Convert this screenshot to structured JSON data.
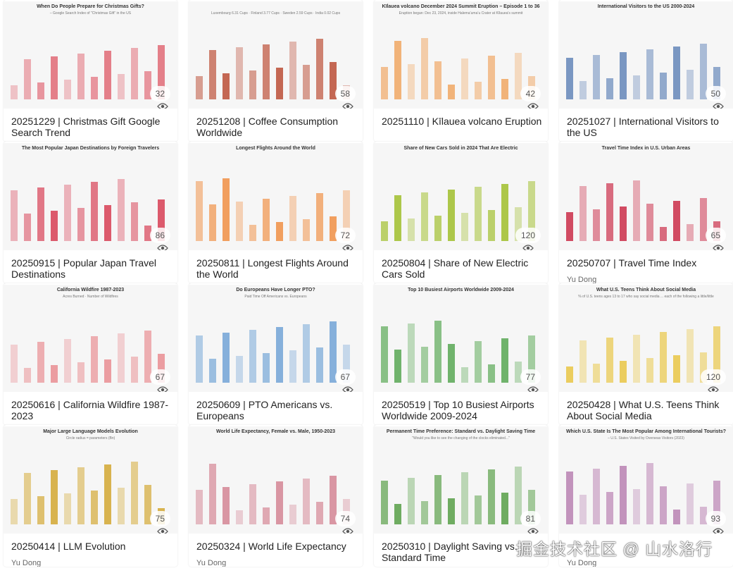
{
  "cards": [
    {
      "thumb_title": "When Do People Prepare for Christmas Gifts?",
      "thumb_sub": "– Google Search Index of \"Christmas Gift\" in the US",
      "title": "20251229 | Christmas Gift Google Search Trend",
      "views": "32",
      "accent": "#e0616e"
    },
    {
      "thumb_title": "",
      "thumb_sub": "Luxembourg 6.31 Cups · Finland 3.77 Cups · Sweden 2.59 Cups · India 0.02 Cups",
      "title": "20251208 | Coffee Consumption Worldwide",
      "views": "58",
      "accent": "#b8432a"
    },
    {
      "thumb_title": "Kīlauea volcano December 2024 Summit Eruption – Episode 1 to 36",
      "thumb_sub": "Eruption began: Dec 23, 2024, inside Halemaʻumaʻu Crater at Kīlauea's summit",
      "title": "20251110 | Kīlauea volcano Eruption",
      "views": "42",
      "accent": "#f0a25a"
    },
    {
      "thumb_title": "International Visitors to the US 2000-2024",
      "thumb_sub": "",
      "title": "20251027 | International Visitors to the US",
      "views": "50",
      "accent": "#5b7fb5"
    },
    {
      "thumb_title": "The Most Popular Japan Destinations by Foreign Travelers",
      "thumb_sub": "",
      "title": "20250915 | Popular Japan Travel Destinations",
      "views": "86",
      "accent": "#d6334a"
    },
    {
      "thumb_title": "Longest Flights Around the World",
      "thumb_sub": "",
      "title": "20250811 | Longest Flights Around the World",
      "views": "72",
      "accent": "#f08a3a"
    },
    {
      "thumb_title": "Share of New Cars Sold in 2024 That Are Electric",
      "thumb_sub": "",
      "title": "20250804 | Share of New Electric Cars Sold",
      "views": "120",
      "accent": "#9bbb1f"
    },
    {
      "thumb_title": "Travel Time Index in U.S. Urban Areas",
      "thumb_sub": "",
      "title": "20250707 | Travel Time Index",
      "author": "Yu Dong",
      "views": "65",
      "accent": "#c8203d"
    },
    {
      "thumb_title": "California Wildfire 1987-2023",
      "thumb_sub": "Acres Burned · Number of Wildfires",
      "title": "20250616 | California Wildfire 1987-2023",
      "views": "67",
      "accent": "#e8878c"
    },
    {
      "thumb_title": "Do Europeans Have Longer PTO?",
      "thumb_sub": "Paid Time Off Americans vs. Europeans",
      "title": "20250609 | PTO Americans vs. Europeans",
      "views": "67",
      "accent": "#6a9fd4"
    },
    {
      "thumb_title": "Top 10 Busiest Airports Worldwide 2009-2024",
      "thumb_sub": "",
      "title": "20250519 | Top 10 Busiest Airports Worldwide 2009-2024",
      "views": "77",
      "accent": "#4fa34a"
    },
    {
      "thumb_title": "What U.S. Teens Think About Social Media",
      "thumb_sub": "% of U.S. teens ages 13 to 17 who say social media ... each of the following a little/little",
      "title": "20250428 | What U.S. Teens Think About Social Media",
      "views": "120",
      "accent": "#e8c33a"
    },
    {
      "thumb_title": "Major Large Language Models Evolution",
      "thumb_sub": "Circle radius = parameters (Bn)",
      "title": "20250414 | LLM Evolution",
      "author": "Yu Dong",
      "views": "75",
      "accent": "#d1a326"
    },
    {
      "thumb_title": "World Life Expectancy, Female vs. Male, 1950-2023",
      "thumb_sub": "",
      "title": "20250324 | World Life Expectancy",
      "author": "Yu Dong",
      "views": "74",
      "accent": "#d27e8e"
    },
    {
      "thumb_title": "Permanent Time Preference: Standard vs. Daylight Saving Time",
      "thumb_sub": "\"Would you like to see the changing of the clocks eliminated...\"",
      "title": "20250310 | Daylight Saving vs. Standard Time",
      "views": "81",
      "accent": "#4e9a3c"
    },
    {
      "thumb_title": "Which U.S. State Is The Most Popular Among International Tourists?",
      "thumb_sub": "– U.S. States Visited by Overseas Visitors (2023)",
      "title": "",
      "author": "Yu Dong",
      "views": "93",
      "accent": "#b57aae"
    }
  ],
  "watermark": "掘金技术社区 @ 山水洛行"
}
